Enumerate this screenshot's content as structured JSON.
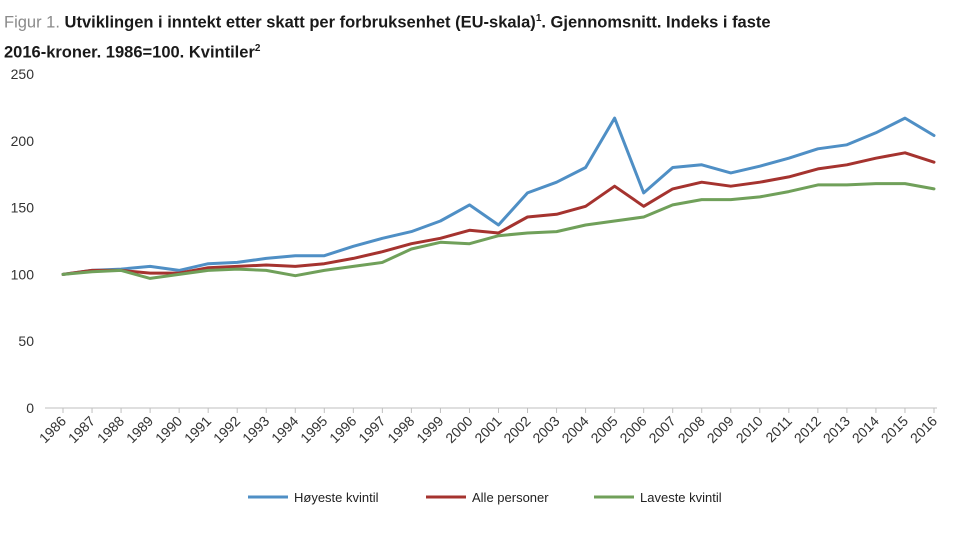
{
  "title": {
    "prefix": "Figur 1.",
    "text": "Utviklingen i inntekt etter skatt per forbruksenhet (EU-skala)",
    "note1": "1",
    "text2": ". Gjennomsnitt. Indeks i faste",
    "line2": "2016-kroner. 1986=100. Kvintiler",
    "note2": "2"
  },
  "chart_data": {
    "type": "line",
    "title": "Utviklingen i inntekt etter skatt per forbruksenhet (EU-skala). Gjennomsnitt. Indeks i faste 2016-kroner. 1986=100. Kvintiler",
    "xlabel": "",
    "ylabel": "",
    "ylim": [
      0,
      250
    ],
    "yticks": [
      0,
      50,
      100,
      150,
      200,
      250
    ],
    "grid": false,
    "legend_position": "bottom",
    "categories": [
      "1986",
      "1987",
      "1988",
      "1989",
      "1990",
      "1991",
      "1992",
      "1993",
      "1994",
      "1995",
      "1996",
      "1997",
      "1998",
      "1999",
      "2000",
      "2001",
      "2002",
      "2003",
      "2004",
      "2005",
      "2006",
      "2007",
      "2008",
      "2009",
      "2010",
      "2011",
      "2012",
      "2013",
      "2014",
      "2015",
      "2016"
    ],
    "series": [
      {
        "name": "Høyeste kvintil",
        "color": "#4f8fc5",
        "values": [
          100,
          103,
          104,
          106,
          103,
          108,
          109,
          112,
          114,
          114,
          121,
          127,
          132,
          140,
          152,
          137,
          161,
          169,
          180,
          217,
          161,
          180,
          182,
          176,
          181,
          187,
          194,
          197,
          206,
          217,
          204
        ]
      },
      {
        "name": "Alle personer",
        "color": "#a5332f",
        "values": [
          100,
          103,
          103,
          101,
          101,
          105,
          106,
          107,
          106,
          108,
          112,
          117,
          123,
          127,
          133,
          131,
          143,
          145,
          151,
          166,
          151,
          164,
          169,
          166,
          169,
          173,
          179,
          182,
          187,
          191,
          184
        ]
      },
      {
        "name": "Laveste kvintil",
        "color": "#70a05a",
        "values": [
          100,
          102,
          103,
          97,
          100,
          103,
          104,
          103,
          99,
          103,
          106,
          109,
          119,
          124,
          123,
          129,
          131,
          132,
          137,
          140,
          143,
          152,
          156,
          156,
          158,
          162,
          167,
          167,
          168,
          168,
          164
        ]
      }
    ]
  }
}
